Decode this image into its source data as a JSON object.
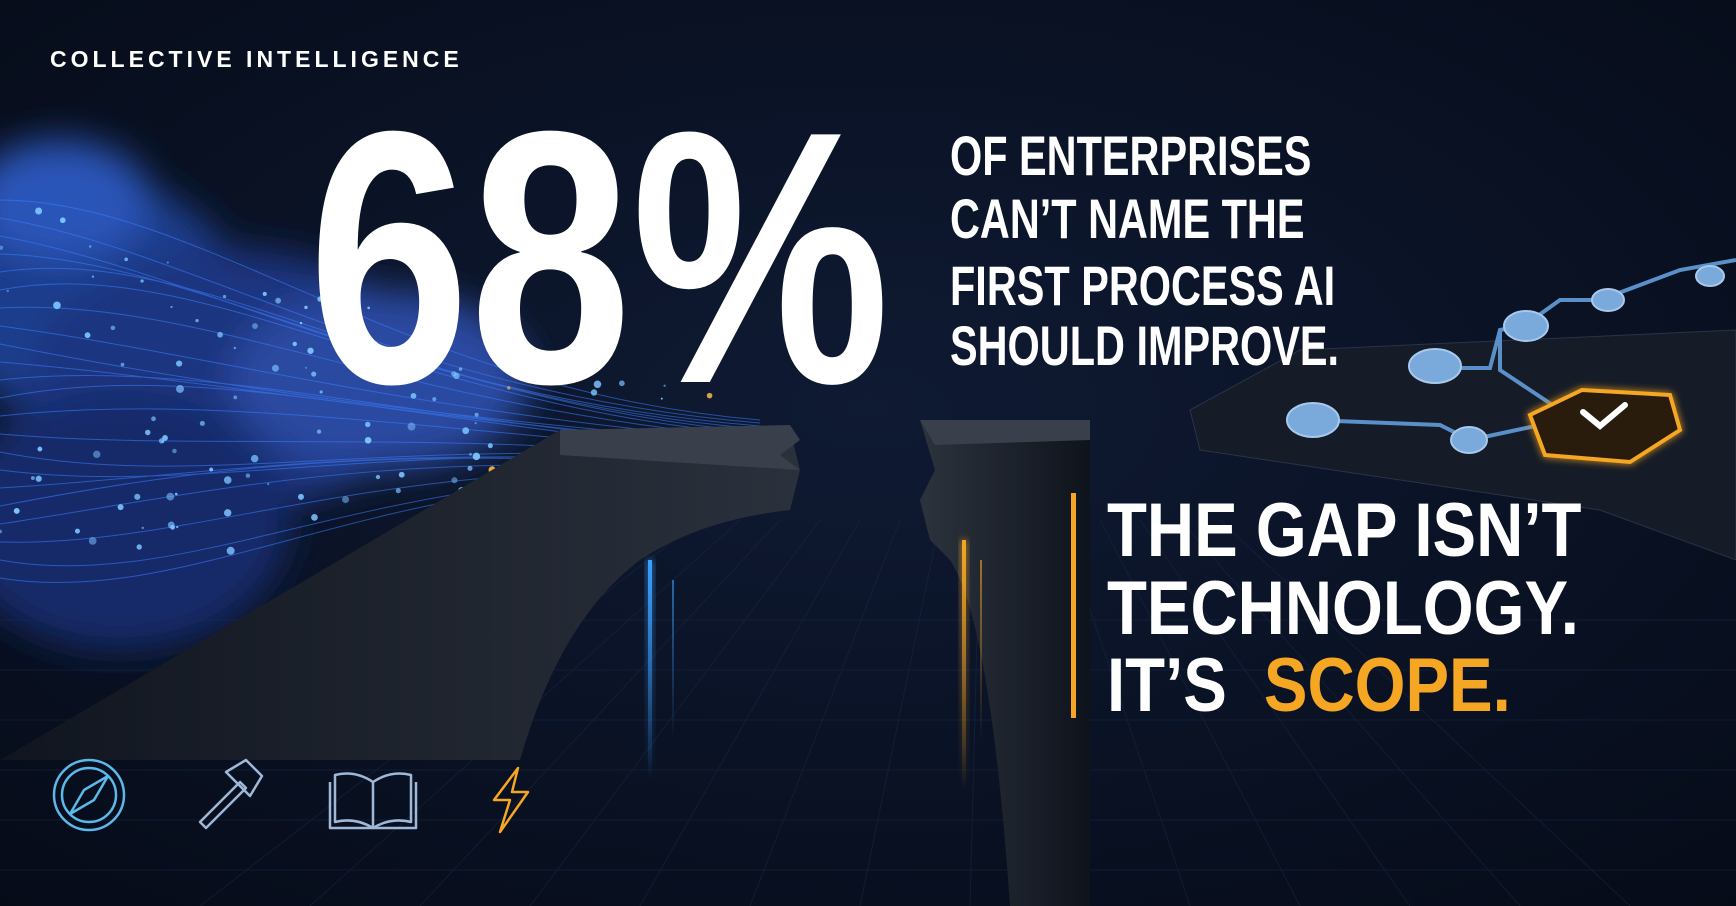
{
  "header": {
    "label": "COLLECTIVE INTELLIGENCE"
  },
  "stat": {
    "figure": "68%",
    "lines": [
      "OF ENTERPRISES",
      "CAN’T NAME THE",
      "FIRST PROCESS AI",
      "SHOULD IMPROVE."
    ]
  },
  "conclusion": {
    "lines": [
      "THE GAP ISN’T",
      "TECHNOLOGY."
    ],
    "prefix": "IT’S",
    "highlight": "SCOPE."
  }
}
